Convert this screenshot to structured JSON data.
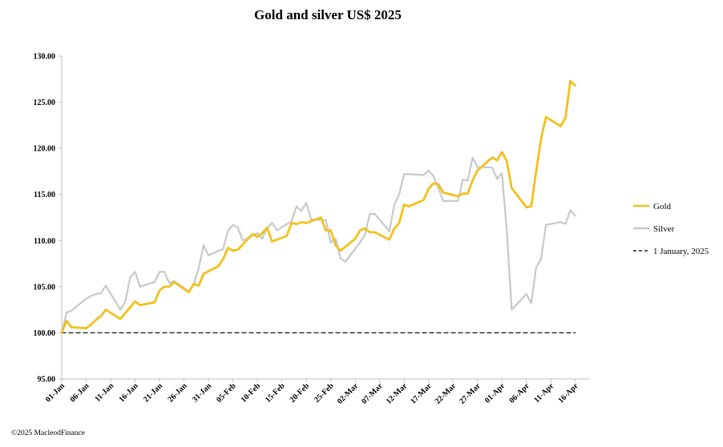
{
  "footer": "©2025 MacleodFinance",
  "chart_data": {
    "type": "line",
    "title": "Gold and silver  US$ 2025",
    "xlabel": "",
    "ylabel": "",
    "ylim": [
      95,
      130
    ],
    "y_ticks": [
      "95.00",
      "100.00",
      "105.00",
      "110.00",
      "115.00",
      "120.00",
      "125.00",
      "130.00"
    ],
    "x_tick_labels": [
      "01-Jan",
      "06-Jan",
      "11-Jan",
      "16-Jan",
      "21-Jan",
      "26-Jan",
      "31-Jan",
      "05-Feb",
      "10-Feb",
      "15-Feb",
      "20-Feb",
      "25-Feb",
      "02-Mar",
      "07-Mar",
      "12-Mar",
      "17-Mar",
      "22-Mar",
      "27-Mar",
      "01-Apr",
      "06-Apr",
      "11-Apr",
      "16-Apr"
    ],
    "x_range_days": [
      0,
      108
    ],
    "legend_placement": "right",
    "grid": false,
    "series": [
      {
        "name": "Gold",
        "color": "#f2c01e",
        "style": "solid",
        "points": [
          [
            0,
            100.0
          ],
          [
            1,
            101.3
          ],
          [
            2,
            100.6
          ],
          [
            5,
            100.5
          ],
          [
            6,
            100.9
          ],
          [
            7,
            101.4
          ],
          [
            8,
            101.8
          ],
          [
            9,
            102.5
          ],
          [
            12,
            101.5
          ],
          [
            15,
            103.4
          ],
          [
            16,
            103.0
          ],
          [
            19,
            103.3
          ],
          [
            20,
            104.6
          ],
          [
            21,
            105.0
          ],
          [
            22,
            105.0
          ],
          [
            23,
            105.5
          ],
          [
            26,
            104.4
          ],
          [
            27,
            105.3
          ],
          [
            28,
            105.1
          ],
          [
            29,
            106.4
          ],
          [
            32,
            107.2
          ],
          [
            33,
            108.0
          ],
          [
            34,
            109.2
          ],
          [
            35,
            108.9
          ],
          [
            36,
            109.0
          ],
          [
            39,
            110.7
          ],
          [
            40,
            110.4
          ],
          [
            41,
            110.8
          ],
          [
            42,
            111.4
          ],
          [
            43,
            109.9
          ],
          [
            46,
            110.5
          ],
          [
            47,
            111.9
          ],
          [
            48,
            111.8
          ],
          [
            49,
            112.0
          ],
          [
            50,
            111.9
          ],
          [
            53,
            112.5
          ],
          [
            54,
            111.1
          ],
          [
            55,
            111.1
          ],
          [
            56,
            109.5
          ],
          [
            57,
            108.9
          ],
          [
            60,
            110.2
          ],
          [
            61,
            111.1
          ],
          [
            62,
            111.3
          ],
          [
            63,
            110.9
          ],
          [
            64,
            110.9
          ],
          [
            67,
            110.1
          ],
          [
            68,
            111.3
          ],
          [
            69,
            111.9
          ],
          [
            70,
            113.9
          ],
          [
            71,
            113.7
          ],
          [
            74,
            114.4
          ],
          [
            75,
            115.6
          ],
          [
            76,
            116.2
          ],
          [
            77,
            116.1
          ],
          [
            78,
            115.2
          ],
          [
            81,
            114.8
          ],
          [
            82,
            115.1
          ],
          [
            83,
            115.1
          ],
          [
            84,
            116.5
          ],
          [
            85,
            117.6
          ],
          [
            88,
            119.0
          ],
          [
            89,
            118.7
          ],
          [
            90,
            119.6
          ],
          [
            91,
            118.6
          ],
          [
            92,
            115.7
          ],
          [
            95,
            113.6
          ],
          [
            96,
            113.7
          ],
          [
            97,
            117.5
          ],
          [
            98,
            121.0
          ],
          [
            99,
            123.4
          ],
          [
            102,
            122.4
          ],
          [
            103,
            123.3
          ],
          [
            104,
            127.3
          ],
          [
            105,
            126.8
          ]
        ]
      },
      {
        "name": "Silver",
        "color": "#c8c8c8",
        "style": "solid",
        "points": [
          [
            0,
            100.0
          ],
          [
            1,
            102.2
          ],
          [
            2,
            102.4
          ],
          [
            5,
            103.7
          ],
          [
            6,
            104.0
          ],
          [
            7,
            104.2
          ],
          [
            8,
            104.3
          ],
          [
            9,
            105.1
          ],
          [
            12,
            102.5
          ],
          [
            13,
            103.4
          ],
          [
            14,
            106.0
          ],
          [
            15,
            106.6
          ],
          [
            16,
            105.0
          ],
          [
            19,
            105.5
          ],
          [
            20,
            106.6
          ],
          [
            21,
            106.6
          ],
          [
            22,
            105.4
          ],
          [
            23,
            105.6
          ],
          [
            26,
            104.5
          ],
          [
            27,
            105.3
          ],
          [
            28,
            107.0
          ],
          [
            29,
            109.5
          ],
          [
            30,
            108.4
          ],
          [
            33,
            109.1
          ],
          [
            34,
            111.1
          ],
          [
            35,
            111.7
          ],
          [
            36,
            111.4
          ],
          [
            37,
            110.0
          ],
          [
            40,
            110.8
          ],
          [
            41,
            110.2
          ],
          [
            42,
            111.4
          ],
          [
            43,
            111.9
          ],
          [
            44,
            111.1
          ],
          [
            47,
            112.1
          ],
          [
            48,
            113.7
          ],
          [
            49,
            113.2
          ],
          [
            50,
            114.1
          ],
          [
            51,
            112.3
          ],
          [
            54,
            112.2
          ],
          [
            55,
            109.8
          ],
          [
            56,
            110.2
          ],
          [
            57,
            108.1
          ],
          [
            58,
            107.7
          ],
          [
            61,
            109.8
          ],
          [
            62,
            110.6
          ],
          [
            63,
            112.9
          ],
          [
            64,
            112.9
          ],
          [
            67,
            111.0
          ],
          [
            68,
            113.9
          ],
          [
            69,
            115.0
          ],
          [
            70,
            117.2
          ],
          [
            71,
            117.2
          ],
          [
            74,
            117.1
          ],
          [
            75,
            117.6
          ],
          [
            76,
            117.0
          ],
          [
            77,
            115.7
          ],
          [
            78,
            114.3
          ],
          [
            81,
            114.3
          ],
          [
            82,
            116.6
          ],
          [
            83,
            116.5
          ],
          [
            84,
            119.0
          ],
          [
            85,
            118.0
          ],
          [
            88,
            117.9
          ],
          [
            89,
            116.7
          ],
          [
            90,
            117.3
          ],
          [
            91,
            111.0
          ],
          [
            92,
            102.5
          ],
          [
            95,
            104.2
          ],
          [
            96,
            103.2
          ],
          [
            97,
            107.1
          ],
          [
            98,
            108.0
          ],
          [
            99,
            111.7
          ],
          [
            102,
            112.0
          ],
          [
            103,
            111.8
          ],
          [
            104,
            113.3
          ],
          [
            105,
            112.7
          ]
        ]
      },
      {
        "name": "1 January, 2025",
        "color": "#222222",
        "style": "dashed",
        "points": [
          [
            0,
            100.0
          ],
          [
            105,
            100.0
          ]
        ]
      }
    ]
  }
}
